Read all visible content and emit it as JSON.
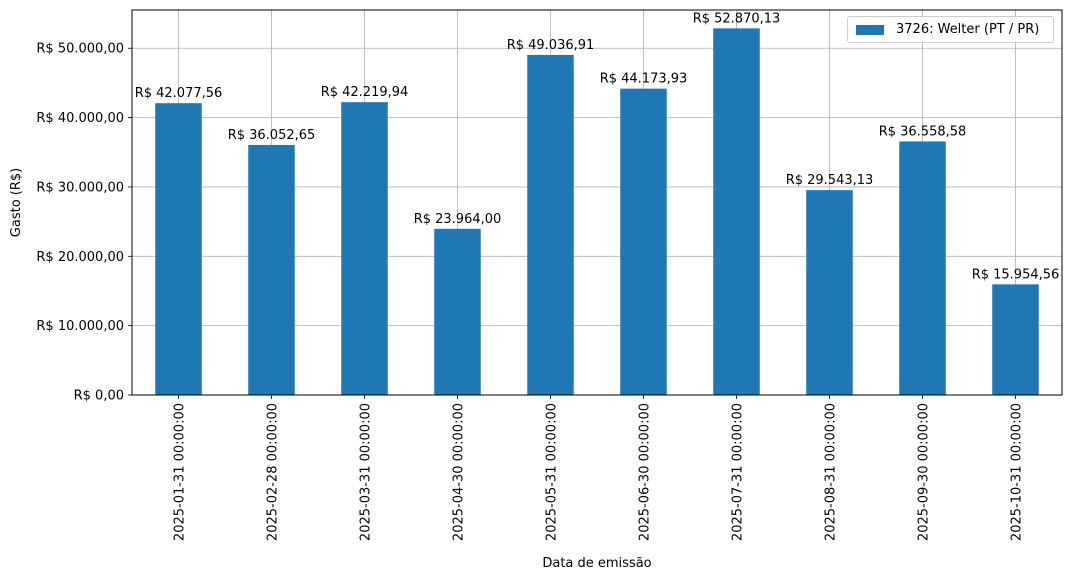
{
  "chart_data": {
    "type": "bar",
    "categories": [
      "2025-01-31 00:00:00",
      "2025-02-28 00:00:00",
      "2025-03-31 00:00:00",
      "2025-04-30 00:00:00",
      "2025-05-31 00:00:00",
      "2025-06-30 00:00:00",
      "2025-07-31 00:00:00",
      "2025-08-31 00:00:00",
      "2025-09-30 00:00:00",
      "2025-10-31 00:00:00"
    ],
    "series": [
      {
        "name": "3726: Welter (PT / PR)",
        "values": [
          42077.56,
          36052.65,
          42219.94,
          23964.0,
          49036.91,
          44173.93,
          52870.13,
          29543.13,
          36558.58,
          15954.56
        ],
        "data_labels": [
          "R$ 42.077,56",
          "R$ 36.052,65",
          "R$ 42.219,94",
          "R$ 23.964,00",
          "R$ 49.036,91",
          "R$ 44.173,93",
          "R$ 52.870,13",
          "R$ 29.543,13",
          "R$ 36.558,58",
          "R$ 15.954,56"
        ],
        "color": "#1f77b4"
      }
    ],
    "title": "",
    "xlabel": "Data de emissão",
    "ylabel": "Gasto (R$)",
    "ylim": [
      0,
      55513.64
    ],
    "yticks": [
      0,
      10000,
      20000,
      30000,
      40000,
      50000
    ],
    "ytick_labels": [
      "R$ 0,00",
      "R$ 10.000,00",
      "R$ 20.000,00",
      "R$ 30.000,00",
      "R$ 40.000,00",
      "R$ 50.000,00"
    ],
    "grid": true,
    "legend_position": "top-right"
  }
}
